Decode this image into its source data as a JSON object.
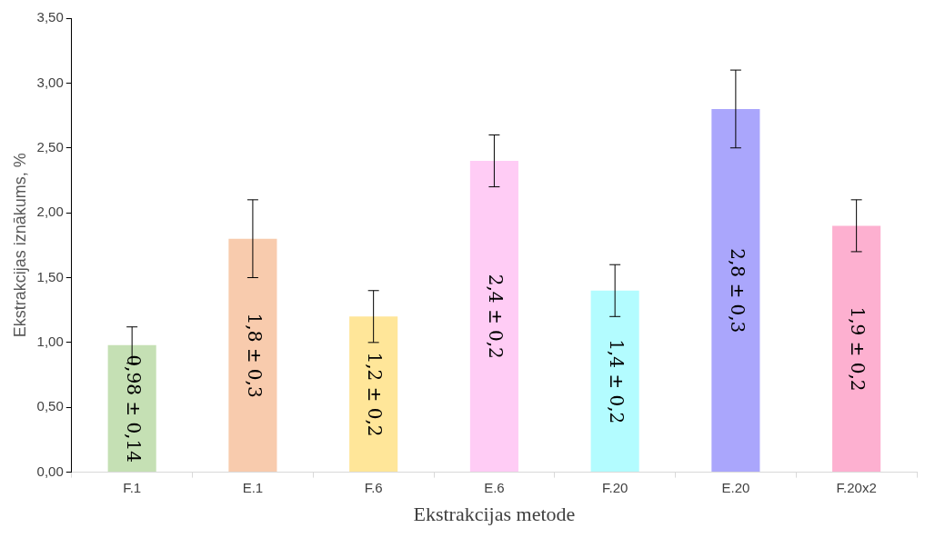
{
  "chart_data": {
    "type": "bar",
    "xlabel": "Ekstrakcijas metode",
    "ylabel": "Ekstrakcijas iznākums, %",
    "categories": [
      "F.1",
      "E.1",
      "F.6",
      "E.6",
      "F.20",
      "E.20",
      "F.20x2"
    ],
    "values": [
      0.98,
      1.8,
      1.2,
      2.4,
      1.4,
      2.8,
      1.9
    ],
    "errors": [
      0.14,
      0.3,
      0.2,
      0.2,
      0.2,
      0.3,
      0.2
    ],
    "colors": [
      "#c5e0b4",
      "#f8cbad",
      "#ffe699",
      "#ffccf5",
      "#b3fcff",
      "#aaa6fc",
      "#fdb0d0"
    ],
    "value_labels": [
      "0,98 ± 0,14",
      "1,8 ± 0,3",
      "1,2 ± 0,2",
      "2,4 ± 0,2",
      "1,4 ± 0,2",
      "2,8 ± 0,3",
      "1,9 ± 0,2"
    ],
    "ylim": [
      0,
      3.5
    ],
    "yticks": [
      {
        "value": 0,
        "label": "0,00"
      },
      {
        "value": 0.5,
        "label": "0,50"
      },
      {
        "value": 1,
        "label": "1,00"
      },
      {
        "value": 1.5,
        "label": "1,50"
      },
      {
        "value": 2,
        "label": "2,00"
      },
      {
        "value": 2.5,
        "label": "2,50"
      },
      {
        "value": 3,
        "label": "3,00"
      },
      {
        "value": 3.5,
        "label": "3,50"
      }
    ],
    "grid": false,
    "legend": false
  }
}
